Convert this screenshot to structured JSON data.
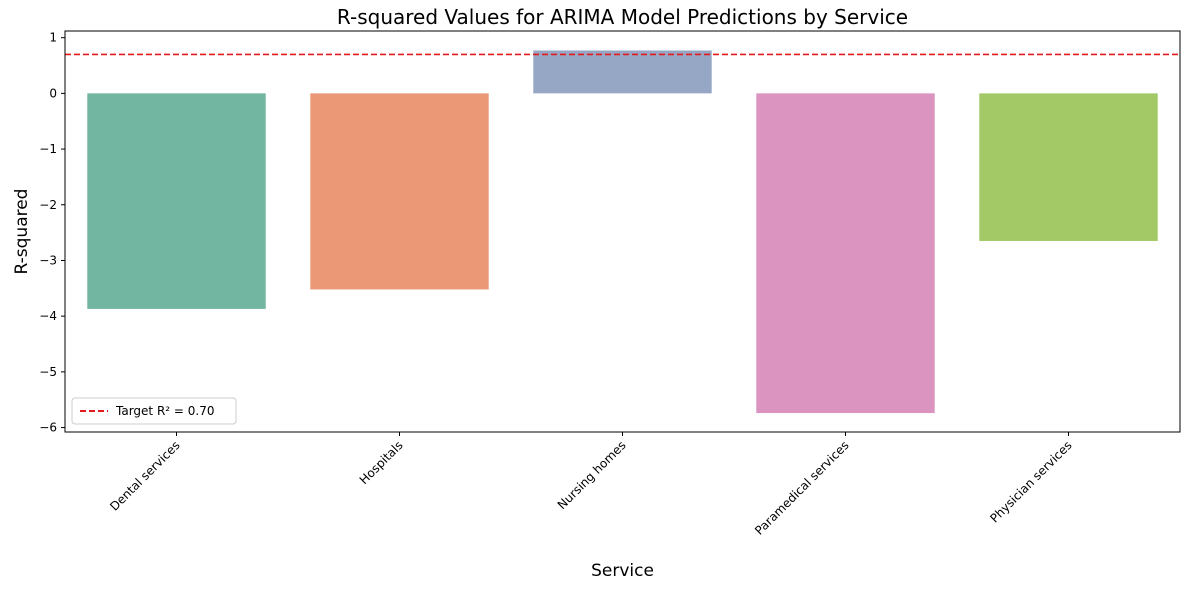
{
  "chart_data": {
    "type": "bar",
    "title": "R-squared Values for ARIMA Model Predictions by Service",
    "xlabel": "Service",
    "ylabel": "R-squared",
    "categories": [
      "Dental services",
      "Hospitals",
      "Nursing homes",
      "Paramedical services",
      "Physician services"
    ],
    "values": [
      -3.87,
      -3.52,
      0.77,
      -5.74,
      -2.65
    ],
    "colors": [
      "#72b5a1",
      "#ea9876",
      "#96a6c5",
      "#db94c0",
      "#a2c965"
    ],
    "ylim": [
      -6.08,
      1.12
    ],
    "yticks": [
      -6,
      -5,
      -4,
      -3,
      -2,
      -1,
      0,
      1
    ],
    "reference_line": {
      "value": 0.7,
      "color": "#e31a1c",
      "style": "dashed",
      "label": "Target R² = 0.70"
    },
    "legend": {
      "placement": "lower-left"
    },
    "grid": false
  }
}
